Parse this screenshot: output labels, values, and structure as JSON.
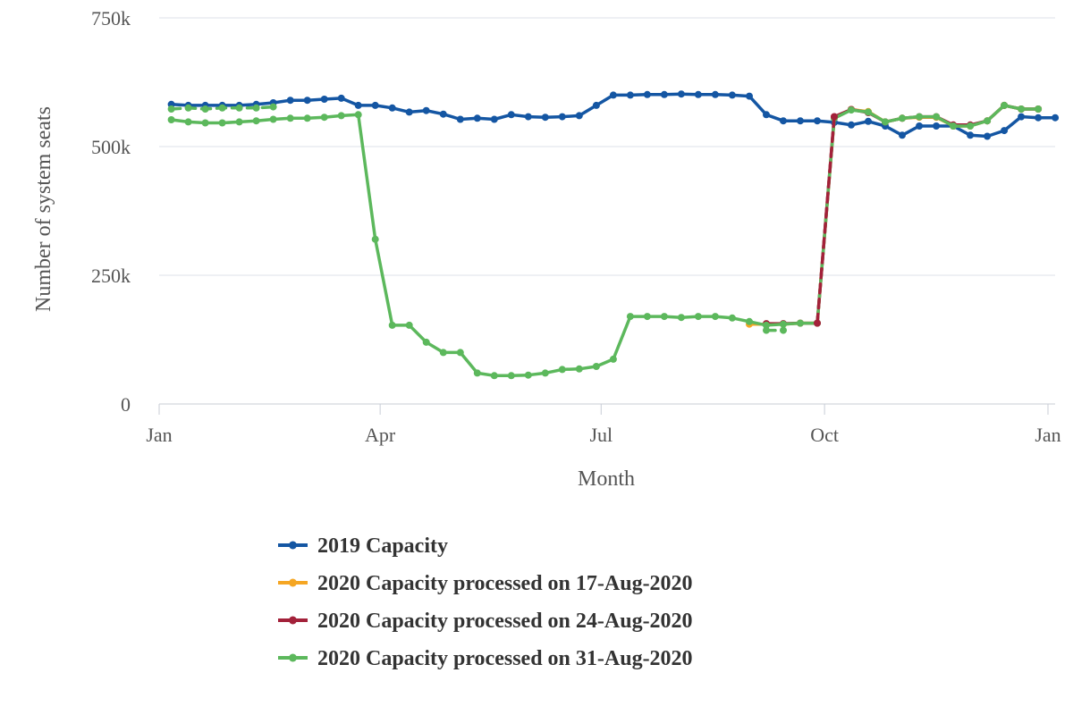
{
  "chart_data": {
    "type": "line",
    "xlabel": "Month",
    "ylabel": "Number of system seats",
    "x_domain": [
      "2020-01-01",
      "2021-01-01"
    ],
    "x_ticks": [
      {
        "date": "2020-01-01",
        "label": "Jan"
      },
      {
        "date": "2020-04-01",
        "label": "Apr"
      },
      {
        "date": "2020-07-01",
        "label": "Jul"
      },
      {
        "date": "2020-10-01",
        "label": "Oct"
      },
      {
        "date": "2021-01-01",
        "label": "Jan"
      }
    ],
    "y_ticks": [
      {
        "value": 0,
        "label": "0"
      },
      {
        "value": 250000,
        "label": "250k"
      },
      {
        "value": 500000,
        "label": "500k"
      },
      {
        "value": 750000,
        "label": "750k"
      }
    ],
    "ylim": [
      0,
      750000
    ],
    "grid": "horizontal",
    "legend_position": "bottom",
    "series": [
      {
        "name": "2019 Capacity",
        "color": "#1456a3",
        "dashed": false,
        "points": [
          [
            "2020-01-06",
            582000
          ],
          [
            "2020-01-13",
            580000
          ],
          [
            "2020-01-20",
            580000
          ],
          [
            "2020-01-27",
            580000
          ],
          [
            "2020-02-03",
            580000
          ],
          [
            "2020-02-10",
            582000
          ],
          [
            "2020-02-17",
            585000
          ],
          [
            "2020-02-24",
            590000
          ],
          [
            "2020-03-02",
            590000
          ],
          [
            "2020-03-09",
            592000
          ],
          [
            "2020-03-16",
            594000
          ],
          [
            "2020-03-23",
            580000
          ],
          [
            "2020-03-30",
            580000
          ],
          [
            "2020-04-06",
            575000
          ],
          [
            "2020-04-13",
            567000
          ],
          [
            "2020-04-20",
            570000
          ],
          [
            "2020-04-27",
            563000
          ],
          [
            "2020-05-04",
            553000
          ],
          [
            "2020-05-11",
            555000
          ],
          [
            "2020-05-18",
            553000
          ],
          [
            "2020-05-25",
            562000
          ],
          [
            "2020-06-01",
            558000
          ],
          [
            "2020-06-08",
            557000
          ],
          [
            "2020-06-15",
            558000
          ],
          [
            "2020-06-22",
            560000
          ],
          [
            "2020-06-29",
            580000
          ],
          [
            "2020-07-06",
            600000
          ],
          [
            "2020-07-13",
            600000
          ],
          [
            "2020-07-20",
            601000
          ],
          [
            "2020-07-27",
            601000
          ],
          [
            "2020-08-03",
            602000
          ],
          [
            "2020-08-10",
            601000
          ],
          [
            "2020-08-17",
            601000
          ],
          [
            "2020-08-24",
            600000
          ],
          [
            "2020-08-31",
            598000
          ],
          [
            "2020-09-07",
            562000
          ],
          [
            "2020-09-14",
            550000
          ],
          [
            "2020-09-21",
            550000
          ],
          [
            "2020-09-28",
            550000
          ],
          [
            "2020-10-05",
            547000
          ],
          [
            "2020-10-12",
            542000
          ],
          [
            "2020-10-19",
            549000
          ],
          [
            "2020-10-26",
            540000
          ],
          [
            "2020-11-02",
            522000
          ],
          [
            "2020-11-09",
            540000
          ],
          [
            "2020-11-16",
            540000
          ],
          [
            "2020-11-23",
            540000
          ],
          [
            "2020-11-30",
            522000
          ],
          [
            "2020-12-07",
            520000
          ],
          [
            "2020-12-14",
            531000
          ],
          [
            "2020-12-21",
            558000
          ],
          [
            "2020-12-28",
            556000
          ],
          [
            "2021-01-04",
            556000
          ]
        ]
      },
      {
        "name": "2020 Capacity processed on 17-Aug-2020",
        "color": "#f5a623",
        "dashed": false,
        "points": [
          [
            "2020-08-31",
            155000
          ],
          [
            "2020-09-07",
            155000
          ],
          [
            "2020-09-14",
            155000
          ],
          [
            "2020-09-21",
            157000
          ],
          [
            "2020-09-28",
            157000
          ],
          [
            "2020-10-05",
            555000
          ],
          [
            "2020-10-12",
            572000
          ],
          [
            "2020-10-19",
            568000
          ],
          [
            "2020-10-26",
            548000
          ],
          [
            "2020-11-02",
            555000
          ],
          [
            "2020-11-09",
            557000
          ],
          [
            "2020-11-16",
            557000
          ],
          [
            "2020-11-23",
            540000
          ],
          [
            "2020-11-30",
            540000
          ],
          [
            "2020-12-07",
            550000
          ],
          [
            "2020-12-14",
            580000
          ],
          [
            "2020-12-21",
            573000
          ],
          [
            "2020-12-28",
            573000
          ]
        ]
      },
      {
        "name": "2020 Capacity processed on 24-Aug-2020",
        "color": "#a3213a",
        "dashed": false,
        "points": [
          [
            "2020-09-07",
            156000
          ],
          [
            "2020-09-14",
            156000
          ],
          [
            "2020-09-21",
            157000
          ],
          [
            "2020-09-28",
            157000
          ],
          [
            "2020-10-05",
            558000
          ],
          [
            "2020-10-12",
            572000
          ],
          [
            "2020-10-19",
            566000
          ],
          [
            "2020-10-26",
            548000
          ],
          [
            "2020-11-02",
            555000
          ],
          [
            "2020-11-09",
            558000
          ],
          [
            "2020-11-16",
            558000
          ],
          [
            "2020-11-23",
            542000
          ],
          [
            "2020-11-30",
            542000
          ],
          [
            "2020-12-07",
            550000
          ],
          [
            "2020-12-14",
            580000
          ],
          [
            "2020-12-21",
            573000
          ],
          [
            "2020-12-28",
            573000
          ]
        ]
      },
      {
        "name": "2020 Capacity processed on 31-Aug-2020",
        "color": "#5cb85c",
        "dashed": false,
        "points": [
          [
            "2020-01-06",
            552000
          ],
          [
            "2020-01-13",
            548000
          ],
          [
            "2020-01-20",
            546000
          ],
          [
            "2020-01-27",
            546000
          ],
          [
            "2020-02-03",
            548000
          ],
          [
            "2020-02-10",
            550000
          ],
          [
            "2020-02-17",
            553000
          ],
          [
            "2020-02-24",
            555000
          ],
          [
            "2020-03-02",
            555000
          ],
          [
            "2020-03-09",
            557000
          ],
          [
            "2020-03-16",
            560000
          ],
          [
            "2020-03-23",
            562000
          ],
          [
            "2020-03-30",
            320000
          ],
          [
            "2020-04-06",
            153000
          ],
          [
            "2020-04-13",
            153000
          ],
          [
            "2020-04-20",
            120000
          ],
          [
            "2020-04-27",
            100000
          ],
          [
            "2020-05-04",
            100000
          ],
          [
            "2020-05-11",
            60000
          ],
          [
            "2020-05-18",
            55000
          ],
          [
            "2020-05-25",
            55000
          ],
          [
            "2020-06-01",
            56000
          ],
          [
            "2020-06-08",
            60000
          ],
          [
            "2020-06-15",
            67000
          ],
          [
            "2020-06-22",
            68000
          ],
          [
            "2020-06-29",
            73000
          ],
          [
            "2020-07-06",
            87000
          ],
          [
            "2020-07-13",
            170000
          ],
          [
            "2020-07-20",
            170000
          ],
          [
            "2020-07-27",
            170000
          ],
          [
            "2020-08-03",
            168000
          ],
          [
            "2020-08-10",
            170000
          ],
          [
            "2020-08-17",
            170000
          ],
          [
            "2020-08-24",
            167000
          ],
          [
            "2020-08-31",
            160000
          ],
          [
            "2020-09-07",
            153000
          ],
          [
            "2020-09-14",
            155000
          ],
          [
            "2020-09-21",
            157000
          ],
          [
            "2020-09-28",
            157000
          ],
          [
            "2020-10-05",
            555000
          ],
          [
            "2020-10-12",
            571000
          ],
          [
            "2020-10-19",
            567000
          ],
          [
            "2020-10-26",
            548000
          ],
          [
            "2020-11-02",
            555000
          ],
          [
            "2020-11-09",
            558000
          ],
          [
            "2020-11-16",
            558000
          ],
          [
            "2020-11-23",
            540000
          ],
          [
            "2020-11-30",
            540000
          ],
          [
            "2020-12-07",
            550000
          ],
          [
            "2020-12-14",
            580000
          ],
          [
            "2020-12-21",
            573000
          ],
          [
            "2020-12-28",
            573000
          ]
        ]
      },
      {
        "name": "",
        "color": "#5cb85c",
        "dashed": true,
        "points": [
          [
            "2020-01-06",
            573000
          ],
          [
            "2020-01-13",
            575000
          ],
          [
            "2020-01-20",
            573000
          ],
          [
            "2020-01-27",
            575000
          ],
          [
            "2020-02-03",
            575000
          ],
          [
            "2020-02-10",
            575000
          ],
          [
            "2020-02-17",
            577000
          ]
        ]
      },
      {
        "name": "",
        "color": "#5cb85c",
        "dashed": true,
        "points": [
          [
            "2020-09-07",
            143000
          ],
          [
            "2020-09-14",
            143000
          ]
        ]
      },
      {
        "name": "",
        "color": "#a3213a",
        "dashed": true,
        "points": [
          [
            "2020-09-28",
            157000
          ],
          [
            "2020-10-05",
            558000
          ]
        ]
      }
    ]
  }
}
